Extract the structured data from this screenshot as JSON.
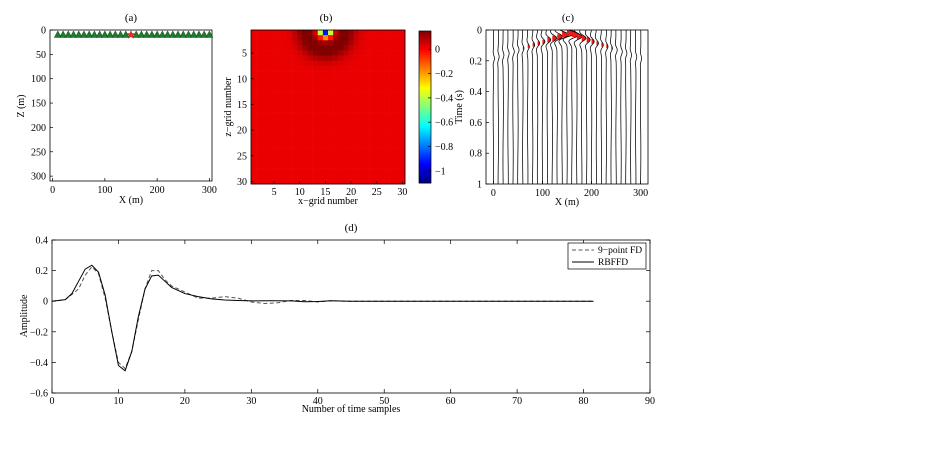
{
  "chart_data": [
    {
      "id": "a",
      "type": "scatter",
      "title": "(a)",
      "xlabel": "X (m)",
      "ylabel": "Z (m)",
      "xlim": [
        -5,
        305
      ],
      "ylim": [
        0,
        310
      ],
      "y_reversed": true,
      "xticks": [
        "0",
        "100",
        "200",
        "300"
      ],
      "yticks": [
        "0",
        "50",
        "100",
        "150",
        "200",
        "250",
        "300"
      ],
      "receivers": {
        "name": "receivers",
        "marker": "triangle",
        "color": "#1e7a2e",
        "z": 10,
        "x": [
          10,
          20,
          30,
          40,
          50,
          60,
          70,
          80,
          90,
          100,
          110,
          120,
          130,
          140,
          160,
          170,
          180,
          190,
          200,
          210,
          220,
          230,
          240,
          250,
          260,
          270,
          280,
          290,
          300
        ]
      },
      "source": {
        "name": "source",
        "marker": "star",
        "color": "#ee2a1a",
        "x": 150,
        "z": 10
      }
    },
    {
      "id": "b",
      "type": "heatmap",
      "title": "(b)",
      "xlabel": "x−grid number",
      "ylabel": "z−grid number",
      "grid_size": [
        30,
        30
      ],
      "xticks": [
        "5",
        "10",
        "15",
        "20",
        "25",
        "30"
      ],
      "yticks": [
        "5",
        "10",
        "15",
        "20",
        "25",
        "30"
      ],
      "source_cell": {
        "x": 15,
        "z": 1
      },
      "value_range": [
        -1.1,
        0.15
      ],
      "colorbar_ticks": [
        "0",
        "−0.2",
        "−0.4",
        "−0.6",
        "−0.8",
        "−1"
      ],
      "colorbar_values": [
        0,
        -0.2,
        -0.4,
        -0.6,
        -0.8,
        -1
      ],
      "colormap": "jet"
    },
    {
      "id": "c",
      "type": "line",
      "title": "(c)",
      "xlabel": "X (m)",
      "ylabel": "Time (s)",
      "xlim": [
        -15,
        315
      ],
      "ylim": [
        0,
        1
      ],
      "y_reversed": true,
      "xticks": [
        "0",
        "100",
        "200",
        "300"
      ],
      "yticks": [
        "0",
        "0.2",
        "0.4",
        "0.6",
        "0.8",
        "1"
      ],
      "trace_x_start": 0,
      "trace_spacing": 10,
      "trace_count": 31,
      "source_x": 150,
      "positive_fill_color": "#ee1c1c"
    },
    {
      "id": "d",
      "type": "line",
      "title": "(d)",
      "xlabel": "Number of time samples",
      "ylabel": "Amplitude",
      "xlim": [
        0,
        90
      ],
      "ylim": [
        -0.6,
        0.4
      ],
      "xticks": [
        "0",
        "10",
        "20",
        "30",
        "40",
        "50",
        "60",
        "70",
        "80",
        "90"
      ],
      "yticks": [
        "0.4",
        "0.2",
        "0",
        "−0.2",
        "−0.4",
        "−0.6"
      ],
      "legend": "top-right",
      "series": [
        {
          "name": "9−point FD",
          "style": "dashed",
          "x": [
            0,
            2,
            4,
            5,
            6,
            7,
            8,
            9,
            10,
            11,
            12,
            13,
            14,
            15,
            16,
            17,
            18,
            20,
            22,
            24,
            26,
            28,
            30,
            32,
            34,
            36,
            38,
            40,
            42,
            44,
            50,
            60,
            70,
            81.5
          ],
          "y": [
            0,
            0.01,
            0.08,
            0.17,
            0.225,
            0.18,
            0.02,
            -0.2,
            -0.4,
            -0.44,
            -0.33,
            -0.12,
            0.08,
            0.2,
            0.2,
            0.14,
            0.1,
            0.06,
            0.02,
            0.02,
            0.03,
            0.02,
            -0.005,
            -0.015,
            -0.01,
            0.005,
            0.005,
            -0.005,
            0.003,
            0,
            0,
            0,
            0,
            0
          ]
        },
        {
          "name": "RBFFD",
          "style": "solid",
          "x": [
            0,
            2,
            3,
            4,
            5,
            6,
            7,
            8,
            9,
            10,
            11,
            12,
            13,
            14,
            15,
            16,
            17,
            18,
            20,
            22,
            24,
            26,
            28,
            30,
            33,
            36,
            38,
            40,
            42,
            45,
            50,
            60,
            70,
            81.5
          ],
          "y": [
            0,
            0.01,
            0.05,
            0.13,
            0.21,
            0.235,
            0.19,
            0.04,
            -0.2,
            -0.42,
            -0.455,
            -0.33,
            -0.1,
            0.08,
            0.165,
            0.17,
            0.13,
            0.09,
            0.05,
            0.03,
            0.015,
            0.008,
            0.005,
            0.002,
            0.003,
            0.002,
            -0.004,
            -0.002,
            0.003,
            0,
            0,
            0,
            0,
            0
          ]
        }
      ]
    }
  ]
}
